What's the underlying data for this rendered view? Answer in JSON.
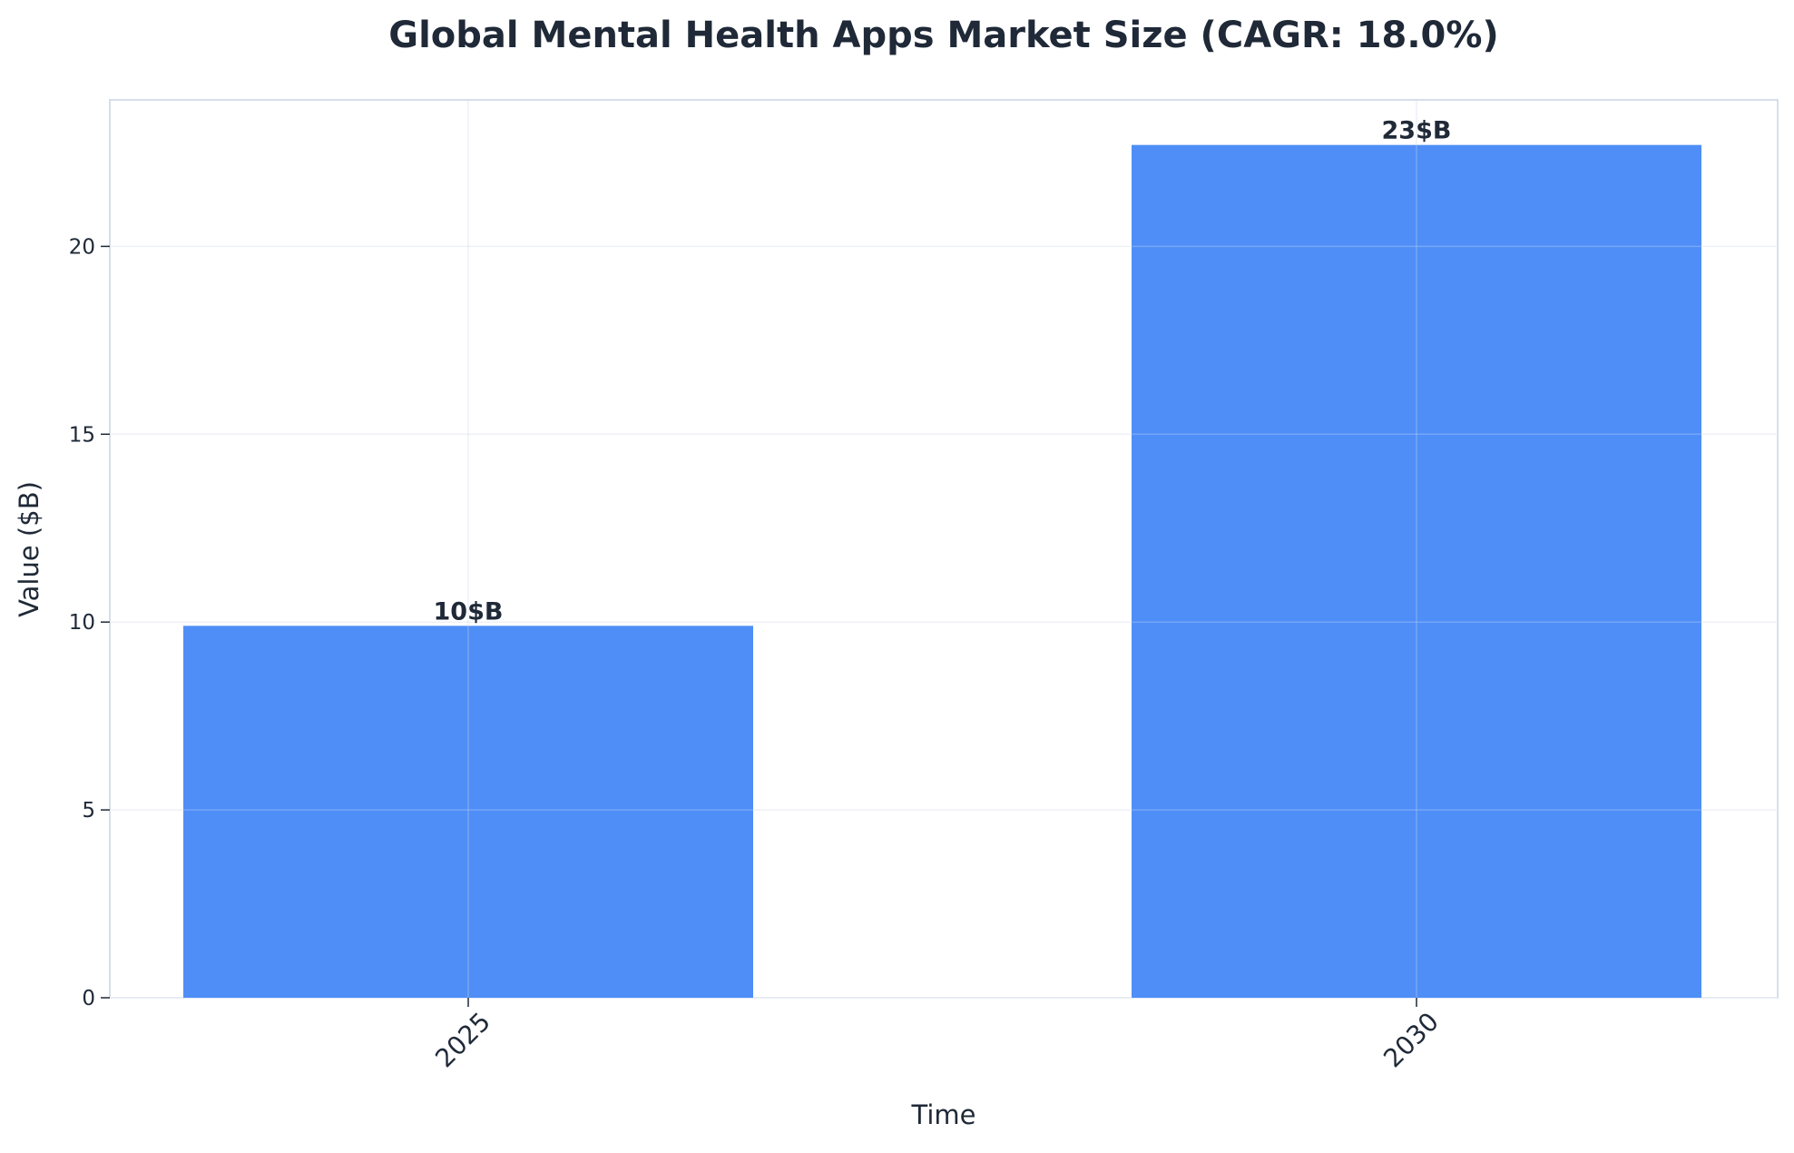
{
  "chart_data": {
    "type": "bar",
    "title": "Global Mental Health Apps Market Size (CAGR: 18.0%)",
    "xlabel": "Time",
    "ylabel": "Value ($B)",
    "categories": [
      "2025",
      "2030"
    ],
    "values": [
      9.9,
      22.7
    ],
    "data_labels": [
      "10$B",
      "23$B"
    ],
    "ylim": [
      0,
      23.9
    ],
    "yticks": [
      0,
      5,
      10,
      15,
      20
    ],
    "ytick_labels": [
      "0",
      "5",
      "10",
      "15",
      "20"
    ],
    "grid": true,
    "legend": "none",
    "bar_color": "#4f8ef7",
    "frame_color": "#d7deea",
    "text_color": "#1f2937"
  }
}
